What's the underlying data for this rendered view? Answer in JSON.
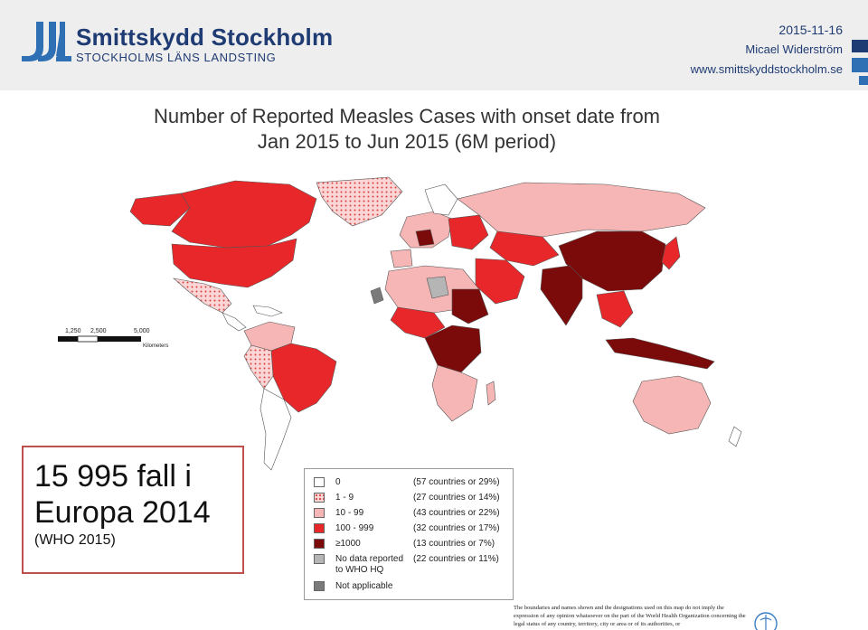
{
  "header": {
    "logo_name": "Smittskydd Stockholm",
    "logo_sub": "STOCKHOLMS LÄNS LANDSTING",
    "date": "2015-11-16",
    "author": "Micael Widerström",
    "website": "www.smittskyddstockholm.se",
    "brand_color": "#1f3b73"
  },
  "map": {
    "title_line1": "Number of Reported Measles Cases with onset date from",
    "title_line2": "Jan 2015 to Jun 2015 (6M period)",
    "scale_ticks": [
      "0",
      "1,250",
      "2,500",
      "5,000"
    ],
    "scale_unit": "Kilometers"
  },
  "callout": {
    "line1": "15 995 fall i",
    "line2": "Europa 2014",
    "source": "(WHO 2015)",
    "border_color": "#c0504d"
  },
  "legend": {
    "items": [
      {
        "label": "0",
        "count": "(57 countries or 29%)",
        "color": "#ffffff"
      },
      {
        "label": "1 - 9",
        "count": "(27 countries or 14%)",
        "color": "#fbd6d6",
        "pattern": "hatched"
      },
      {
        "label": "10 - 99",
        "count": "(43 countries or 22%)",
        "color": "#f7b6b6"
      },
      {
        "label": "100 - 999",
        "count": "(32 countries or 17%)",
        "color": "#e8272a"
      },
      {
        "label": "≥1000",
        "count": "(13 countries or 7%)",
        "color": "#7b0a0a"
      },
      {
        "label": "No data reported to WHO HQ",
        "count": "(22 countries or 11%)",
        "color": "#b5b5b5"
      },
      {
        "label": "Not applicable",
        "count": "",
        "color": "#7a7a7a"
      }
    ]
  },
  "disclaimer": {
    "text": "The boundaries and names shown and the designations used on this map do not imply the expression of any opinion whatsoever on the part of the World Health Organization concerning the legal status of any country, territory, city or area or of its authorities, or"
  }
}
